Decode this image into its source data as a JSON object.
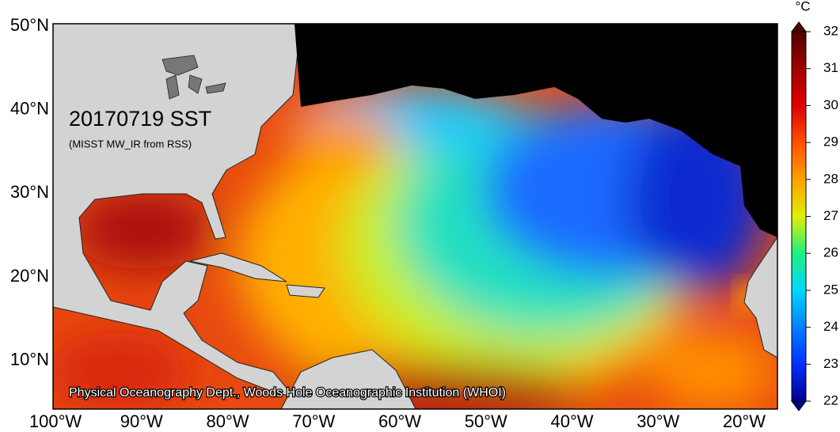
{
  "map": {
    "title": "20170719 SST",
    "subtitle": "(MISST MW_IR from RSS)",
    "credit": "Physical Oceanography Dept., Woods Hole Oceanographic Institution (WHOI)",
    "lat_labels": [
      "50°N",
      "40°N",
      "30°N",
      "20°N",
      "10°N"
    ],
    "lon_labels": [
      "100°W",
      "90°W",
      "80°W",
      "70°W",
      "60°W",
      "50°W",
      "40°W",
      "30°W",
      "20°W"
    ]
  },
  "colorbar": {
    "unit": "°C",
    "range": [
      22,
      32
    ],
    "ticks": [
      22,
      23,
      24,
      25,
      26,
      27,
      28,
      29,
      30,
      31,
      32
    ]
  }
}
